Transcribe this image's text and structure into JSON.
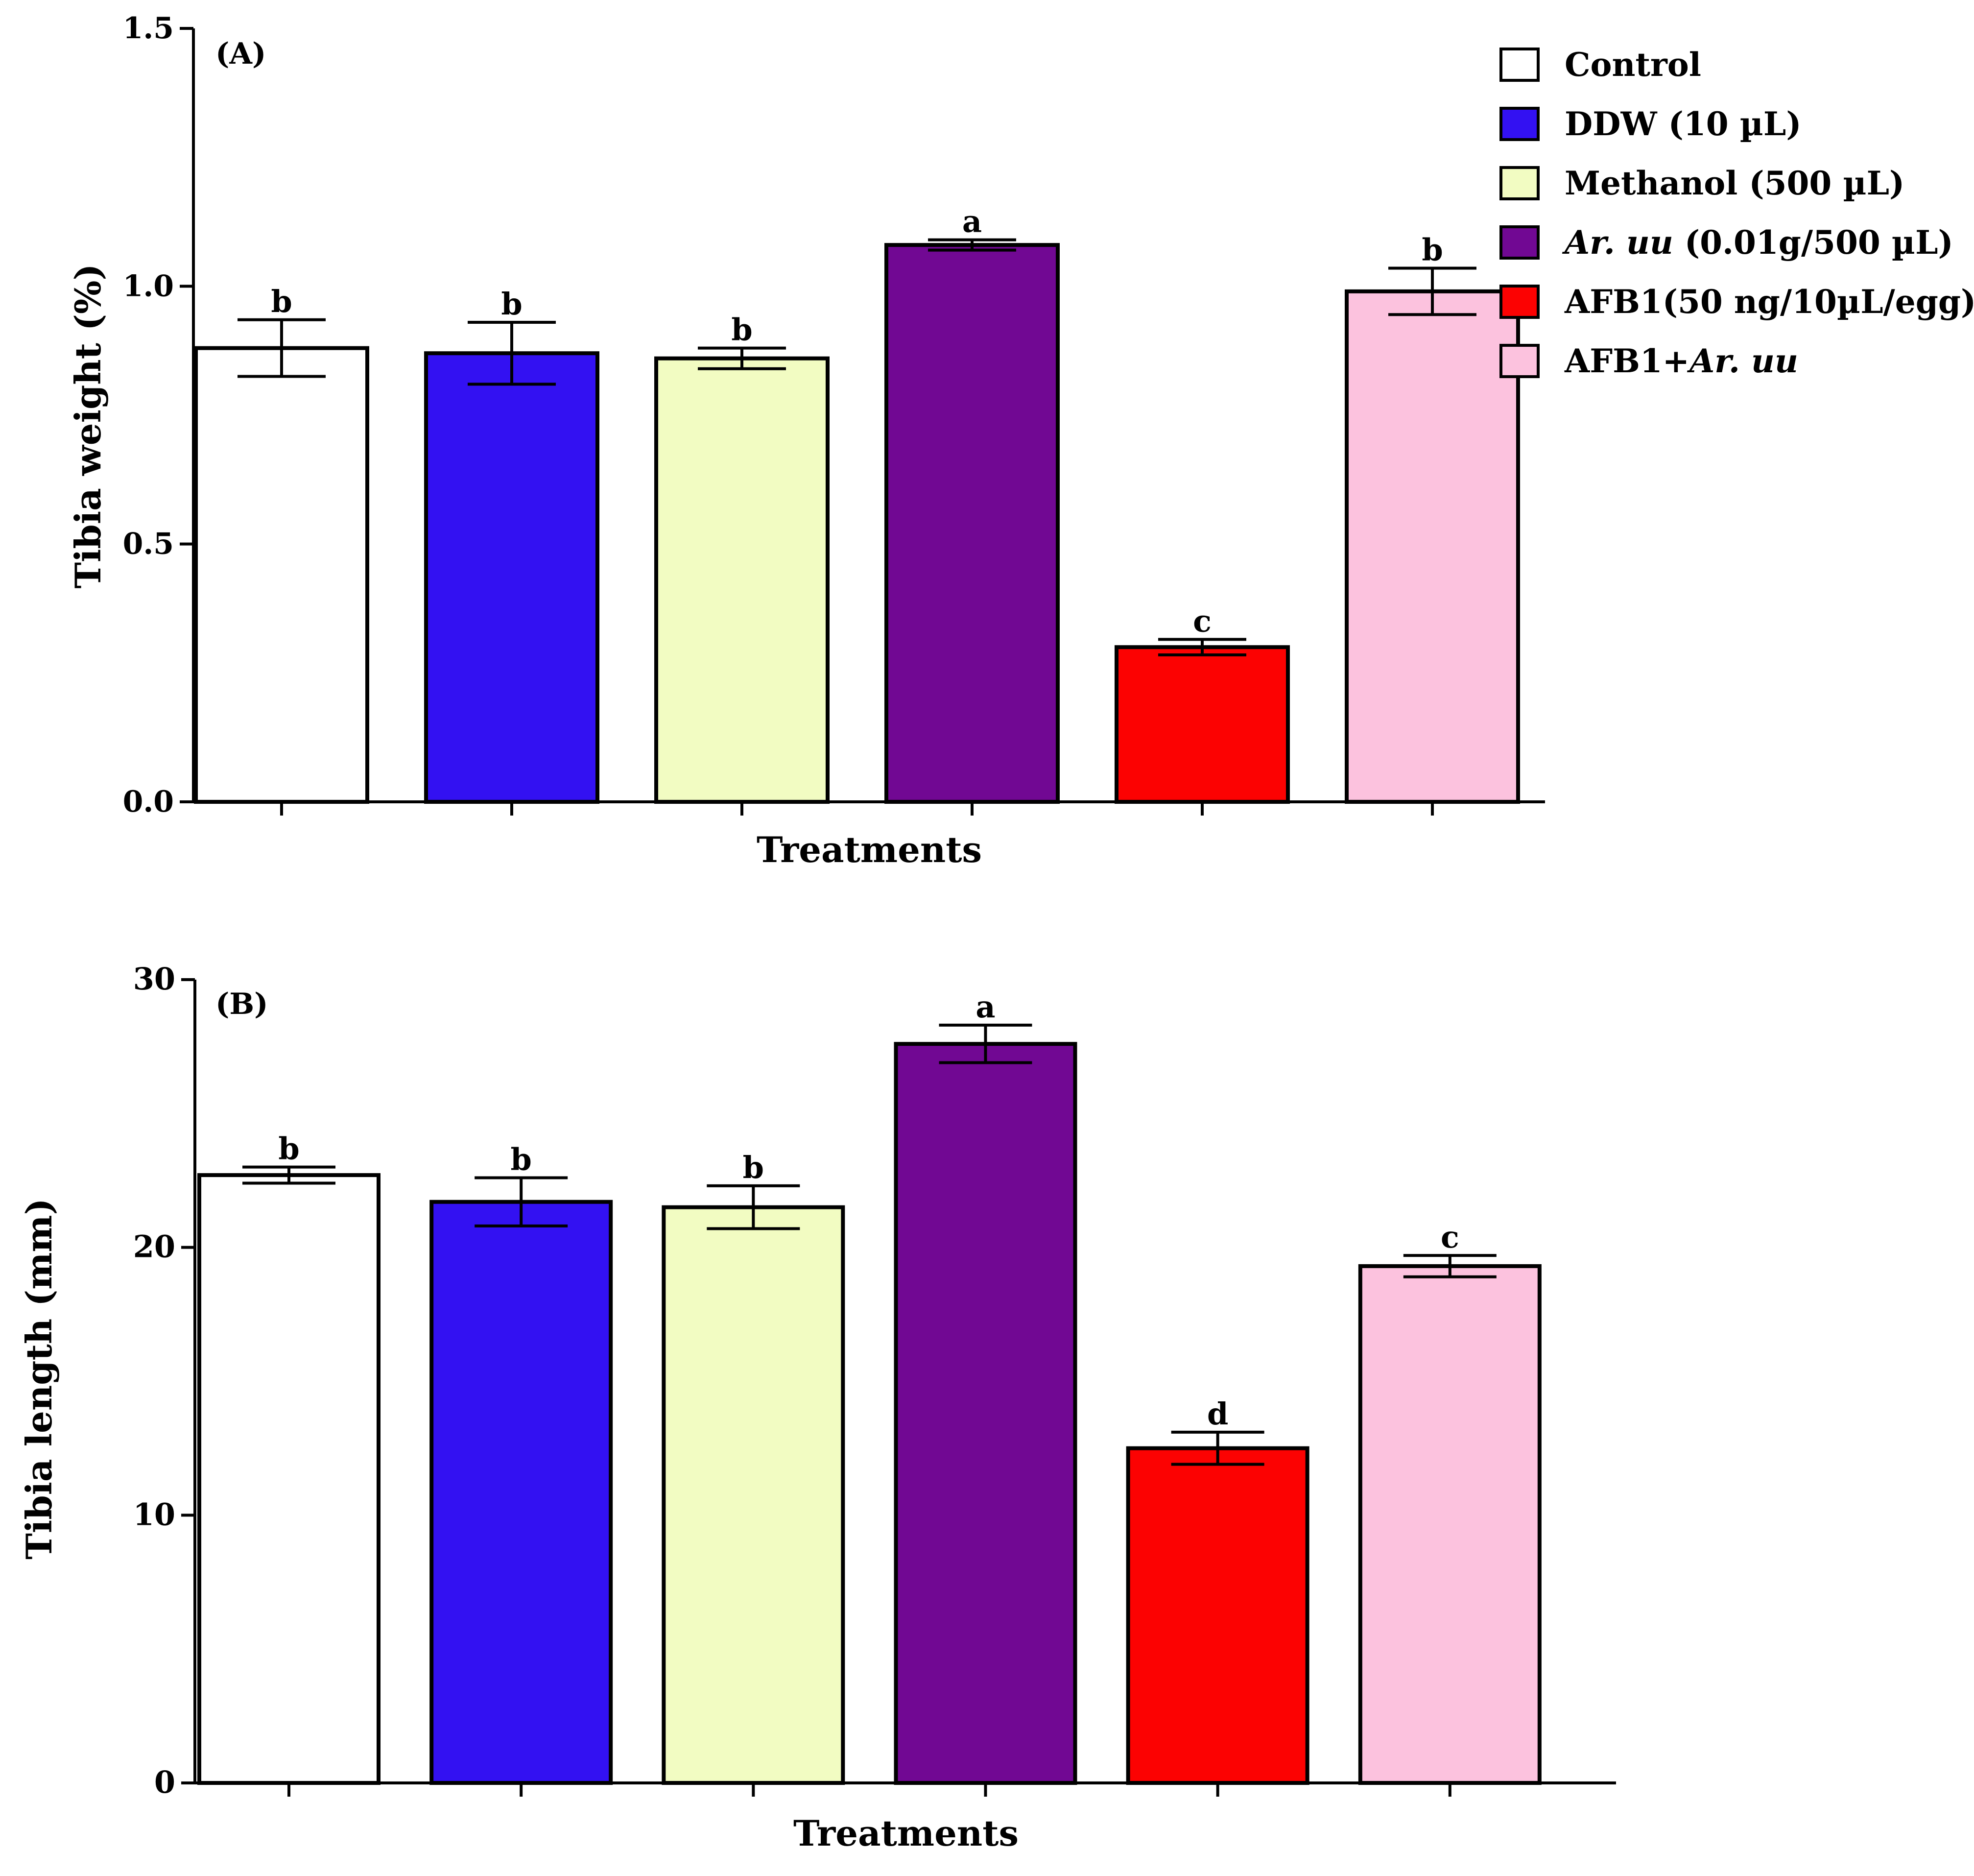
{
  "chart_data": [
    {
      "type": "bar",
      "panel_label": "(A)",
      "xlabel": "Treatments",
      "ylabel": "Tibia weight (%)",
      "ylim": [
        0,
        1.5
      ],
      "yticks": [
        0,
        0.5,
        1.0,
        1.5
      ],
      "ytick_labels": [
        "0.0",
        "0.5",
        "1.0",
        "1.5"
      ],
      "categories": [
        "Control",
        "DDW (10 µL)",
        "Methanol (500 µL)",
        "Ar. uu (0.01g/500 µL)",
        "AFB1(50 ng/10µL/egg)",
        "AFB1+Ar. uu"
      ],
      "values": [
        0.88,
        0.87,
        0.86,
        1.08,
        0.3,
        0.99
      ],
      "errors": [
        0.055,
        0.06,
        0.02,
        0.01,
        0.015,
        0.045
      ],
      "letters": [
        "b",
        "b",
        "b",
        "a",
        "c",
        "b"
      ]
    },
    {
      "type": "bar",
      "panel_label": "(B)",
      "xlabel": "Treatments",
      "ylabel": "Tibia length  (mm)",
      "ylim": [
        0,
        30
      ],
      "yticks": [
        0,
        10,
        20,
        30
      ],
      "ytick_labels": [
        "0",
        "10",
        "20",
        "30"
      ],
      "categories": [
        "Control",
        "DDW (10 µL)",
        "Methanol (500 µL)",
        "Ar. uu (0.01g/500 µL)",
        "AFB1(50 ng/10µL/egg)",
        "AFB1+Ar. uu"
      ],
      "values": [
        22.7,
        21.7,
        21.5,
        27.6,
        12.5,
        19.3
      ],
      "errors": [
        0.3,
        0.9,
        0.8,
        0.7,
        0.6,
        0.4
      ],
      "letters": [
        "b",
        "b",
        "b",
        "a",
        "d",
        "c"
      ]
    }
  ],
  "legend": {
    "position": "top-right",
    "items": [
      {
        "label": "Control",
        "color": "#ffffff"
      },
      {
        "label": "DDW (10 µL)",
        "color": "#3311f2"
      },
      {
        "label": "Methanol (500 µL)",
        "color": "#f2fcc2"
      },
      {
        "prefix_italic": "Ar. uu",
        "label": " (0.01g/500 µL)",
        "color": "#710893"
      },
      {
        "label": "AFB1(50 ng/10µL/egg)",
        "color": "#fc0202"
      },
      {
        "label": "AFB1+",
        "suffix_italic": "Ar. uu",
        "color": "#fcc2de"
      }
    ]
  }
}
